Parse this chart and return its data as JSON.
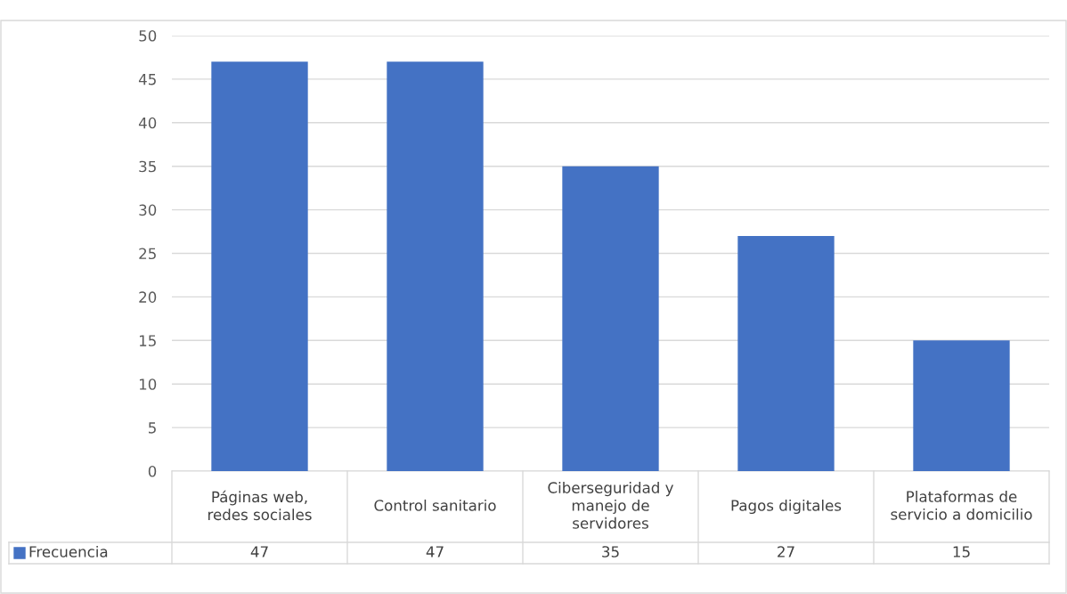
{
  "chart_data": {
    "type": "bar",
    "categories": [
      "Páginas web,\nredes sociales",
      "Control sanitario",
      "Ciberseguridad y\nmanejo de\nservidores",
      "Pagos digitales",
      "Plataformas de\nservicio a domicilio"
    ],
    "series": [
      {
        "name": "Frecuencia",
        "color": "#4472c4",
        "values": [
          47,
          47,
          35,
          27,
          15
        ]
      }
    ],
    "ylim": [
      0,
      50
    ],
    "yticks": [
      0,
      5,
      10,
      15,
      20,
      25,
      30,
      35,
      40,
      45,
      50
    ],
    "grid": "y",
    "legend": "bottom",
    "data_labels": true
  }
}
